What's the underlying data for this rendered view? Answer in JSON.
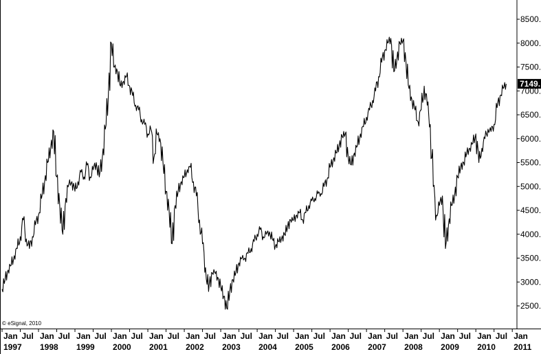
{
  "chart_data": {
    "type": "line",
    "title": "",
    "xlabel": "",
    "ylabel": "",
    "ylim": [
      2000,
      8900
    ],
    "xlim": [
      "1997-01",
      "2011-01"
    ],
    "grid": false,
    "y_axis_side": "right",
    "y_ticks": [
      "2500.",
      "3000.",
      "3500.",
      "4000.",
      "4500.",
      "5000.",
      "5500.",
      "6000.",
      "6500.",
      "7000.",
      "7500.",
      "8000.",
      "8500."
    ],
    "x_ticks": [
      {
        "month": "Jan",
        "year": "1997"
      },
      {
        "month": "Jul",
        "year": ""
      },
      {
        "month": "Jan",
        "year": "1998"
      },
      {
        "month": "Jul",
        "year": ""
      },
      {
        "month": "Jan",
        "year": "1999"
      },
      {
        "month": "Jul",
        "year": ""
      },
      {
        "month": "Jan",
        "year": "2000"
      },
      {
        "month": "Jul",
        "year": ""
      },
      {
        "month": "Jan",
        "year": "2001"
      },
      {
        "month": "Jul",
        "year": ""
      },
      {
        "month": "Jan",
        "year": "2002"
      },
      {
        "month": "Jul",
        "year": ""
      },
      {
        "month": "Jan",
        "year": "2003"
      },
      {
        "month": "Jul",
        "year": ""
      },
      {
        "month": "Jan",
        "year": "2004"
      },
      {
        "month": "Jul",
        "year": ""
      },
      {
        "month": "Jan",
        "year": "2005"
      },
      {
        "month": "Jul",
        "year": ""
      },
      {
        "month": "Jan",
        "year": "2006"
      },
      {
        "month": "Jul",
        "year": ""
      },
      {
        "month": "Jan",
        "year": "2007"
      },
      {
        "month": "Jul",
        "year": ""
      },
      {
        "month": "Jan",
        "year": "2008"
      },
      {
        "month": "Jul",
        "year": ""
      },
      {
        "month": "Jan",
        "year": "2009"
      },
      {
        "month": "Jul",
        "year": ""
      },
      {
        "month": "Jan",
        "year": "2010"
      },
      {
        "month": "Jul",
        "year": ""
      },
      {
        "month": "Jan",
        "year": "2011"
      }
    ],
    "last_value_label": "7149.",
    "copyright": "© eSignal, 2010",
    "series": [
      {
        "x": [
          "1997-01",
          "1997-02",
          "1997-03",
          "1997-04",
          "1997-05",
          "1997-06",
          "1997-07",
          "1997-08",
          "1997-09",
          "1997-10",
          "1997-11",
          "1997-12",
          "1998-01",
          "1998-02",
          "1998-03",
          "1998-04",
          "1998-05",
          "1998-06",
          "1998-07",
          "1998-08",
          "1998-09",
          "1998-10",
          "1998-11",
          "1998-12",
          "1999-01",
          "1999-02",
          "1999-03",
          "1999-04",
          "1999-05",
          "1999-06",
          "1999-07",
          "1999-08",
          "1999-09",
          "1999-10",
          "1999-11",
          "1999-12",
          "2000-01",
          "2000-02",
          "2000-03",
          "2000-04",
          "2000-05",
          "2000-06",
          "2000-07",
          "2000-08",
          "2000-09",
          "2000-10",
          "2000-11",
          "2000-12",
          "2001-01",
          "2001-02",
          "2001-03",
          "2001-04",
          "2001-05",
          "2001-06",
          "2001-07",
          "2001-08",
          "2001-09",
          "2001-10",
          "2001-11",
          "2001-12",
          "2002-01",
          "2002-02",
          "2002-03",
          "2002-04",
          "2002-05",
          "2002-06",
          "2002-07",
          "2002-08",
          "2002-09",
          "2002-10",
          "2002-11",
          "2002-12",
          "2003-01",
          "2003-02",
          "2003-03",
          "2003-04",
          "2003-05",
          "2003-06",
          "2003-07",
          "2003-08",
          "2003-09",
          "2003-10",
          "2003-11",
          "2003-12",
          "2004-01",
          "2004-02",
          "2004-03",
          "2004-04",
          "2004-05",
          "2004-06",
          "2004-07",
          "2004-08",
          "2004-09",
          "2004-10",
          "2004-11",
          "2004-12",
          "2005-01",
          "2005-02",
          "2005-03",
          "2005-04",
          "2005-05",
          "2005-06",
          "2005-07",
          "2005-08",
          "2005-09",
          "2005-10",
          "2005-11",
          "2005-12",
          "2006-01",
          "2006-02",
          "2006-03",
          "2006-04",
          "2006-05",
          "2006-06",
          "2006-07",
          "2006-08",
          "2006-09",
          "2006-10",
          "2006-11",
          "2006-12",
          "2007-01",
          "2007-02",
          "2007-03",
          "2007-04",
          "2007-05",
          "2007-06",
          "2007-07",
          "2007-08",
          "2007-09",
          "2007-10",
          "2007-11",
          "2007-12",
          "2008-01",
          "2008-02",
          "2008-03",
          "2008-04",
          "2008-05",
          "2008-06",
          "2008-07",
          "2008-08",
          "2008-09",
          "2008-10",
          "2008-11",
          "2008-12",
          "2009-01",
          "2009-02",
          "2009-03",
          "2009-04",
          "2009-05",
          "2009-06",
          "2009-07",
          "2009-08",
          "2009-09",
          "2009-10",
          "2009-11",
          "2009-12",
          "2010-01",
          "2010-02",
          "2010-03",
          "2010-04",
          "2010-05",
          "2010-06",
          "2010-07",
          "2010-08",
          "2010-09",
          "2010-10",
          "2010-11"
        ],
        "values": [
          2850,
          3050,
          3250,
          3350,
          3550,
          3700,
          3950,
          4300,
          3900,
          3700,
          3950,
          4200,
          4400,
          4750,
          5100,
          5500,
          5800,
          6150,
          5200,
          4600,
          4000,
          4750,
          5050,
          5100,
          4900,
          5100,
          5300,
          5200,
          5450,
          5200,
          5350,
          5500,
          5200,
          5600,
          6200,
          6900,
          8000,
          7500,
          7400,
          7100,
          7200,
          7300,
          7100,
          6900,
          6700,
          6600,
          6400,
          6300,
          6100,
          6200,
          5600,
          6100,
          6000,
          5500,
          4900,
          4500,
          3800,
          4600,
          4900,
          5100,
          5200,
          5350,
          5400,
          5100,
          4800,
          4300,
          3800,
          3300,
          2800,
          3200,
          3200,
          3100,
          2900,
          2700,
          2450,
          2800,
          3050,
          3200,
          3400,
          3500,
          3500,
          3600,
          3700,
          3850,
          4000,
          4100,
          3950,
          4000,
          4050,
          3900,
          3750,
          3850,
          3900,
          4000,
          4150,
          4300,
          4300,
          4400,
          4450,
          4300,
          4450,
          4600,
          4700,
          4750,
          4850,
          4850,
          5000,
          5150,
          5400,
          5550,
          5700,
          5850,
          6050,
          6100,
          5600,
          5450,
          5700,
          5850,
          6100,
          6250,
          6450,
          6600,
          6800,
          7000,
          7300,
          7600,
          7850,
          8000,
          8100,
          7400,
          7650,
          8000,
          8050,
          7600,
          7050,
          6800,
          6600,
          6350,
          6600,
          7100,
          6700,
          6300,
          5000,
          4400,
          4600,
          4800,
          3700,
          4200,
          4600,
          4800,
          5200,
          5400,
          5500,
          5700,
          5800,
          5900,
          6100,
          5500,
          5800,
          6000,
          6200,
          6150,
          6300,
          6650,
          6900,
          7050,
          7149
        ]
      }
    ]
  }
}
